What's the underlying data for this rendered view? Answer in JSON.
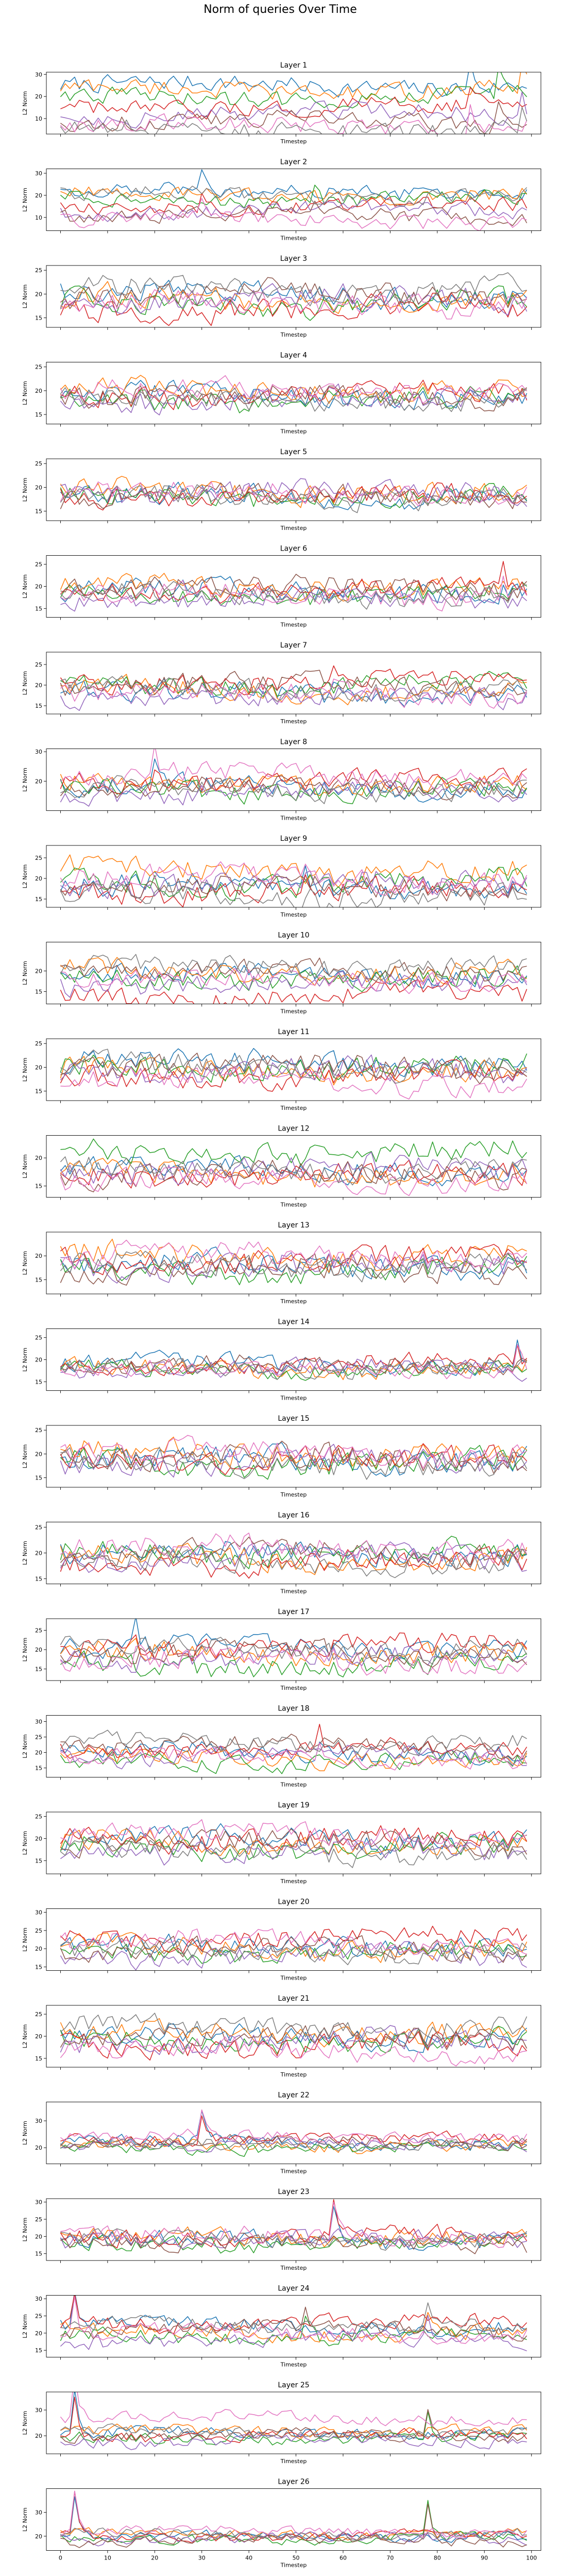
{
  "figure_title": "Norm of queries Over Time",
  "series_colors": [
    "#1f77b4",
    "#ff7f0e",
    "#2ca02c",
    "#d62728",
    "#9467bd",
    "#8c564b",
    "#e377c2",
    "#7f7f7f"
  ],
  "chart_data": [
    {
      "type": "line",
      "title": "Layer 1",
      "xlabel": "Timestep",
      "ylabel": "L2 Norm",
      "xlim": [
        -3,
        102
      ],
      "ylim": [
        3,
        31
      ],
      "yticks": [
        10,
        20,
        30
      ],
      "xticks": [
        0,
        10,
        20,
        30,
        40,
        50,
        60,
        70,
        80,
        90,
        100
      ],
      "show_xtick_labels": false,
      "baseline": [
        25,
        23,
        20,
        15,
        12,
        9,
        7,
        5
      ],
      "amp": 3.5,
      "spikes": [
        {
          "x": 87,
          "h": 10
        },
        {
          "x": 93,
          "h": 12
        },
        {
          "x": 98,
          "h": 12
        }
      ]
    },
    {
      "type": "line",
      "title": "Layer 2",
      "xlabel": "Timestep",
      "ylabel": "L2 Norm",
      "xlim": [
        -3,
        102
      ],
      "ylim": [
        4,
        32
      ],
      "yticks": [
        10,
        20,
        30
      ],
      "xticks": [
        0,
        10,
        20,
        30,
        40,
        50,
        60,
        70,
        80,
        90,
        100
      ],
      "show_xtick_labels": false,
      "baseline": [
        22,
        20,
        18,
        15,
        13,
        11,
        9,
        20
      ],
      "amp": 3,
      "spikes": [
        {
          "x": 30,
          "h": 8
        },
        {
          "x": 54,
          "h": 6
        }
      ]
    },
    {
      "type": "line",
      "title": "Layer 3",
      "xlabel": "Timestep",
      "ylabel": "L2 Norm",
      "xlim": [
        -3,
        102
      ],
      "ylim": [
        13,
        26
      ],
      "yticks": [
        15,
        20,
        25
      ],
      "xticks": [
        0,
        10,
        20,
        30,
        40,
        50,
        60,
        70,
        80,
        90,
        100
      ],
      "show_xtick_labels": false,
      "baseline": [
        20,
        19,
        18,
        17,
        19,
        20,
        18,
        21
      ],
      "amp": 2.2,
      "spikes": []
    },
    {
      "type": "line",
      "title": "Layer 4",
      "xlabel": "Timestep",
      "ylabel": "L2 Norm",
      "xlim": [
        -3,
        102
      ],
      "ylim": [
        13,
        26
      ],
      "yticks": [
        15,
        20,
        25
      ],
      "xticks": [
        0,
        10,
        20,
        30,
        40,
        50,
        60,
        70,
        80,
        90,
        100
      ],
      "show_xtick_labels": false,
      "baseline": [
        19,
        20,
        18,
        19,
        18,
        19,
        20,
        18
      ],
      "amp": 2,
      "spikes": []
    },
    {
      "type": "line",
      "title": "Layer 5",
      "xlabel": "Timestep",
      "ylabel": "L2 Norm",
      "xlim": [
        -3,
        102
      ],
      "ylim": [
        13,
        26
      ],
      "yticks": [
        15,
        20,
        25
      ],
      "xticks": [
        0,
        10,
        20,
        30,
        40,
        50,
        60,
        70,
        80,
        90,
        100
      ],
      "show_xtick_labels": false,
      "baseline": [
        18,
        19,
        18,
        18,
        19,
        18,
        19,
        18
      ],
      "amp": 2,
      "spikes": []
    },
    {
      "type": "line",
      "title": "Layer 6",
      "xlabel": "Timestep",
      "ylabel": "L2 Norm",
      "xlim": [
        -3,
        102
      ],
      "ylim": [
        13,
        27
      ],
      "yticks": [
        15,
        20,
        25
      ],
      "xticks": [
        0,
        10,
        20,
        30,
        40,
        50,
        60,
        70,
        80,
        90,
        100
      ],
      "show_xtick_labels": false,
      "baseline": [
        19,
        20,
        18,
        19,
        17,
        20,
        18,
        18
      ],
      "amp": 2,
      "spikes": [
        {
          "x": 94,
          "h": 4
        }
      ]
    },
    {
      "type": "line",
      "title": "Layer 7",
      "xlabel": "Timestep",
      "ylabel": "L2 Norm",
      "xlim": [
        -3,
        102
      ],
      "ylim": [
        13,
        28
      ],
      "yticks": [
        15,
        20,
        25
      ],
      "xticks": [
        0,
        10,
        20,
        30,
        40,
        50,
        60,
        70,
        80,
        90,
        100
      ],
      "show_xtick_labels": false,
      "baseline": [
        18,
        19,
        20,
        21,
        17,
        20,
        18,
        19
      ],
      "amp": 2.2,
      "spikes": [
        {
          "x": 58,
          "h": 5
        }
      ]
    },
    {
      "type": "line",
      "title": "Layer 8",
      "xlabel": "Timestep",
      "ylabel": "L2 Norm",
      "xlim": [
        -3,
        102
      ],
      "ylim": [
        10,
        31
      ],
      "yticks": [
        20,
        30
      ],
      "xticks": [
        0,
        10,
        20,
        30,
        40,
        50,
        60,
        70,
        80,
        90,
        100
      ],
      "show_xtick_labels": false,
      "baseline": [
        18,
        19,
        17,
        20,
        16,
        18,
        22,
        17
      ],
      "amp": 3,
      "spikes": [
        {
          "x": 20,
          "h": 7
        }
      ]
    },
    {
      "type": "line",
      "title": "Layer 9",
      "xlabel": "Timestep",
      "ylabel": "L2 Norm",
      "xlim": [
        -3,
        102
      ],
      "ylim": [
        13,
        28
      ],
      "yticks": [
        15,
        20,
        25
      ],
      "xticks": [
        0,
        10,
        20,
        30,
        40,
        50,
        60,
        70,
        80,
        90,
        100
      ],
      "show_xtick_labels": false,
      "baseline": [
        18,
        22,
        19,
        17,
        19,
        18,
        20,
        16
      ],
      "amp": 2.5,
      "spikes": [
        {
          "x": 52,
          "h": 5
        }
      ]
    },
    {
      "type": "line",
      "title": "Layer 10",
      "xlabel": "Timestep",
      "ylabel": "L2 Norm",
      "xlim": [
        -3,
        102
      ],
      "ylim": [
        12,
        27
      ],
      "yticks": [
        15,
        20
      ],
      "xticks": [
        0,
        10,
        20,
        30,
        40,
        50,
        60,
        70,
        80,
        90,
        100
      ],
      "show_xtick_labels": false,
      "baseline": [
        19,
        20,
        18,
        14,
        17,
        20,
        18,
        21
      ],
      "amp": 2.2,
      "spikes": []
    },
    {
      "type": "line",
      "title": "Layer 11",
      "xlabel": "Timestep",
      "ylabel": "L2 Norm",
      "xlim": [
        -3,
        102
      ],
      "ylim": [
        13,
        26
      ],
      "yticks": [
        15,
        20,
        25
      ],
      "xticks": [
        0,
        10,
        20,
        30,
        40,
        50,
        60,
        70,
        80,
        90,
        100
      ],
      "show_xtick_labels": false,
      "baseline": [
        21,
        19,
        20,
        18,
        19,
        20,
        17,
        20
      ],
      "amp": 2.2,
      "spikes": []
    },
    {
      "type": "line",
      "title": "Layer 12",
      "xlabel": "Timestep",
      "ylabel": "L2 Norm",
      "xlim": [
        -3,
        102
      ],
      "ylim": [
        13,
        24
      ],
      "yticks": [
        15,
        20
      ],
      "xticks": [
        0,
        10,
        20,
        30,
        40,
        50,
        60,
        70,
        80,
        90,
        100
      ],
      "show_xtick_labels": false,
      "baseline": [
        18,
        17,
        21,
        17,
        18,
        17,
        16,
        18
      ],
      "amp": 1.8,
      "spikes": []
    },
    {
      "type": "line",
      "title": "Layer 13",
      "xlabel": "Timestep",
      "ylabel": "L2 Norm",
      "xlim": [
        -3,
        102
      ],
      "ylim": [
        12,
        25
      ],
      "yticks": [
        15,
        20
      ],
      "xticks": [
        0,
        10,
        20,
        30,
        40,
        50,
        60,
        70,
        80,
        90,
        100
      ],
      "show_xtick_labels": false,
      "baseline": [
        18,
        20,
        17,
        19,
        18,
        17,
        20,
        18
      ],
      "amp": 2.2,
      "spikes": []
    },
    {
      "type": "line",
      "title": "Layer 14",
      "xlabel": "Timestep",
      "ylabel": "L2 Norm",
      "xlim": [
        -3,
        102
      ],
      "ylim": [
        13,
        27
      ],
      "yticks": [
        15,
        20,
        25
      ],
      "xticks": [
        0,
        10,
        20,
        30,
        40,
        50,
        60,
        70,
        80,
        90,
        100
      ],
      "show_xtick_labels": false,
      "baseline": [
        19,
        18,
        18,
        19,
        18,
        19,
        18,
        18
      ],
      "amp": 1.8,
      "spikes": [
        {
          "x": 97,
          "h": 5
        }
      ]
    },
    {
      "type": "line",
      "title": "Layer 15",
      "xlabel": "Timestep",
      "ylabel": "L2 Norm",
      "xlim": [
        -3,
        102
      ],
      "ylim": [
        13,
        26
      ],
      "yticks": [
        15,
        20,
        25
      ],
      "xticks": [
        0,
        10,
        20,
        30,
        40,
        50,
        60,
        70,
        80,
        90,
        100
      ],
      "show_xtick_labels": false,
      "baseline": [
        19,
        20,
        18,
        19,
        18,
        19,
        20,
        18
      ],
      "amp": 2.3,
      "spikes": []
    },
    {
      "type": "line",
      "title": "Layer 16",
      "xlabel": "Timestep",
      "ylabel": "L2 Norm",
      "xlim": [
        -3,
        102
      ],
      "ylim": [
        14,
        26
      ],
      "yticks": [
        15,
        20,
        25
      ],
      "xticks": [
        0,
        10,
        20,
        30,
        40,
        50,
        60,
        70,
        80,
        90,
        100
      ],
      "show_xtick_labels": false,
      "baseline": [
        20,
        19,
        20,
        18,
        19,
        20,
        21,
        18
      ],
      "amp": 2,
      "spikes": []
    },
    {
      "type": "line",
      "title": "Layer 17",
      "xlabel": "Timestep",
      "ylabel": "L2 Norm",
      "xlim": [
        -3,
        102
      ],
      "ylim": [
        12,
        28
      ],
      "yticks": [
        15,
        20,
        25
      ],
      "xticks": [
        0,
        10,
        20,
        30,
        40,
        50,
        60,
        70,
        80,
        90,
        100
      ],
      "show_xtick_labels": false,
      "baseline": [
        20,
        19,
        16,
        21,
        18,
        19,
        17,
        20
      ],
      "amp": 2.5,
      "spikes": [
        {
          "x": 16,
          "h": 5
        }
      ]
    },
    {
      "type": "line",
      "title": "Layer 18",
      "xlabel": "Timestep",
      "ylabel": "L2 Norm",
      "xlim": [
        -3,
        102
      ],
      "ylim": [
        12,
        32
      ],
      "yticks": [
        15,
        20,
        25,
        30
      ],
      "xticks": [
        0,
        10,
        20,
        30,
        40,
        50,
        60,
        70,
        80,
        90,
        100
      ],
      "show_xtick_labels": false,
      "baseline": [
        20,
        18,
        17,
        21,
        19,
        22,
        18,
        23
      ],
      "amp": 2.5,
      "spikes": [
        {
          "x": 55,
          "h": 6
        }
      ]
    },
    {
      "type": "line",
      "title": "Layer 19",
      "xlabel": "Timestep",
      "ylabel": "L2 Norm",
      "xlim": [
        -3,
        102
      ],
      "ylim": [
        12,
        26
      ],
      "yticks": [
        15,
        20,
        25
      ],
      "xticks": [
        0,
        10,
        20,
        30,
        40,
        50,
        60,
        70,
        80,
        90,
        100
      ],
      "show_xtick_labels": false,
      "baseline": [
        20,
        19,
        18,
        20,
        17,
        19,
        21,
        17
      ],
      "amp": 2.2,
      "spikes": []
    },
    {
      "type": "line",
      "title": "Layer 20",
      "xlabel": "Timestep",
      "ylabel": "L2 Norm",
      "xlim": [
        -3,
        102
      ],
      "ylim": [
        14,
        31
      ],
      "yticks": [
        15,
        20,
        25,
        30
      ],
      "xticks": [
        0,
        10,
        20,
        30,
        40,
        50,
        60,
        70,
        80,
        90,
        100
      ],
      "show_xtick_labels": false,
      "baseline": [
        21,
        20,
        19,
        23,
        18,
        20,
        22,
        19
      ],
      "amp": 2.5,
      "spikes": []
    },
    {
      "type": "line",
      "title": "Layer 21",
      "xlabel": "Timestep",
      "ylabel": "L2 Norm",
      "xlim": [
        -3,
        102
      ],
      "ylim": [
        13,
        27
      ],
      "yticks": [
        15,
        20,
        25
      ],
      "xticks": [
        0,
        10,
        20,
        30,
        40,
        50,
        60,
        70,
        80,
        90,
        100
      ],
      "show_xtick_labels": false,
      "baseline": [
        20,
        21,
        19,
        18,
        19,
        20,
        17,
        22
      ],
      "amp": 2.2,
      "spikes": []
    },
    {
      "type": "line",
      "title": "Layer 22",
      "xlabel": "Timestep",
      "ylabel": "L2 Norm",
      "xlim": [
        -3,
        102
      ],
      "ylim": [
        14,
        37
      ],
      "yticks": [
        20,
        30
      ],
      "xticks": [
        0,
        10,
        20,
        30,
        40,
        50,
        60,
        70,
        80,
        90,
        100
      ],
      "show_xtick_labels": false,
      "baseline": [
        22,
        21,
        20,
        23,
        21,
        22,
        24,
        21
      ],
      "amp": 2,
      "spikes": [
        {
          "x": 30,
          "h": 11
        }
      ]
    },
    {
      "type": "line",
      "title": "Layer 23",
      "xlabel": "Timestep",
      "ylabel": "L2 Norm",
      "xlim": [
        -3,
        102
      ],
      "ylim": [
        13,
        31
      ],
      "yticks": [
        15,
        20,
        25,
        30
      ],
      "xticks": [
        0,
        10,
        20,
        30,
        40,
        50,
        60,
        70,
        80,
        90,
        100
      ],
      "show_xtick_labels": false,
      "baseline": [
        19,
        20,
        18,
        20,
        19,
        18,
        20,
        19
      ],
      "amp": 2.2,
      "spikes": [
        {
          "x": 58,
          "h": 9
        }
      ]
    },
    {
      "type": "line",
      "title": "Layer 24",
      "xlabel": "Timestep",
      "ylabel": "L2 Norm",
      "xlim": [
        -3,
        102
      ],
      "ylim": [
        13,
        31
      ],
      "yticks": [
        15,
        20,
        25,
        30
      ],
      "xticks": [
        0,
        10,
        20,
        30,
        40,
        50,
        60,
        70,
        80,
        90,
        100
      ],
      "show_xtick_labels": false,
      "baseline": [
        22,
        20,
        19,
        23,
        18,
        21,
        20,
        22
      ],
      "amp": 2,
      "spikes": [
        {
          "x": 3,
          "h": 9
        },
        {
          "x": 52,
          "h": 5
        },
        {
          "x": 78,
          "h": 7
        }
      ]
    },
    {
      "type": "line",
      "title": "Layer 25",
      "xlabel": "Timestep",
      "ylabel": "L2 Norm",
      "xlim": [
        -3,
        102
      ],
      "ylim": [
        13,
        37
      ],
      "yticks": [
        20,
        30
      ],
      "xticks": [
        0,
        10,
        20,
        30,
        40,
        50,
        60,
        70,
        80,
        90,
        100
      ],
      "show_xtick_labels": false,
      "baseline": [
        21,
        22,
        19,
        20,
        18,
        20,
        27,
        21
      ],
      "amp": 2,
      "spikes": [
        {
          "x": 3,
          "h": 15
        },
        {
          "x": 78,
          "h": 12
        }
      ]
    },
    {
      "type": "line",
      "title": "Layer 26",
      "xlabel": "Timestep",
      "ylabel": "L2 Norm",
      "xlim": [
        -3,
        102
      ],
      "ylim": [
        14,
        40
      ],
      "yticks": [
        20,
        30
      ],
      "xticks": [
        0,
        10,
        20,
        30,
        40,
        50,
        60,
        70,
        80,
        90,
        100
      ],
      "show_xtick_labels": true,
      "baseline": [
        20,
        21,
        19,
        20,
        19,
        18,
        22,
        21
      ],
      "amp": 1.8,
      "spikes": [
        {
          "x": 3,
          "h": 18
        },
        {
          "x": 78,
          "h": 14
        }
      ]
    }
  ]
}
